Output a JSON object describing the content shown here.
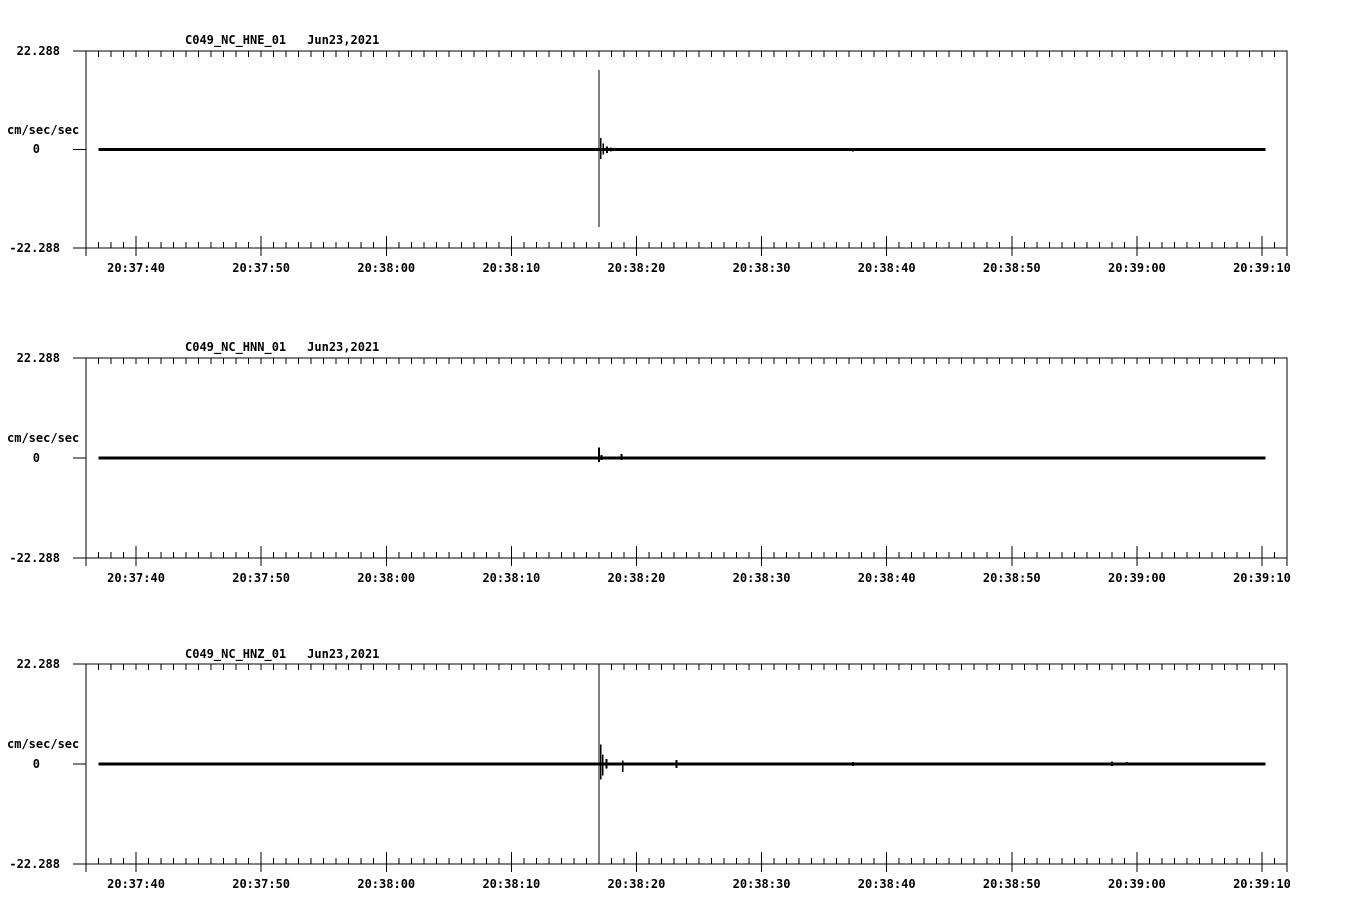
{
  "page": {
    "background": "#ffffff",
    "ink": "#000000"
  },
  "chart_data": {
    "type": "line",
    "description": "Three-component strong-motion seismogram panels, flat baseline at 0 with impulsive spikes",
    "panels": [
      {
        "id": "HNE",
        "title_station": "C049_NC_HNE_01",
        "title_date": "Jun23,2021",
        "y_axis": {
          "unit": "cm/sec/sec",
          "max": 22.288,
          "min": -22.288,
          "baseline": 0,
          "max_label": "22.288",
          "zero_label": "0",
          "min_label": "-22.288"
        },
        "x_axis": {
          "start": "20:37:36",
          "end": "20:39:12",
          "minor_tick_interval_s": 1,
          "major_tick_interval_s": 10,
          "tick_labels": [
            "20:37:40",
            "20:37:50",
            "20:38:00",
            "20:38:10",
            "20:38:20",
            "20:38:30",
            "20:38:40",
            "20:38:50",
            "20:39:00",
            "20:39:10"
          ]
        },
        "trace": {
          "baseline_value": 0,
          "start_s": 1.0,
          "end_s": 94.3,
          "events": [
            {
              "t_s": 41.0,
              "time": "20:38:17",
              "up": 18.0,
              "down": 17.5
            },
            {
              "t_s": 41.15,
              "time": "20:38:17",
              "up": 2.6,
              "down": 2.2
            },
            {
              "t_s": 41.35,
              "time": "20:38:17",
              "up": 1.4,
              "down": 1.1
            },
            {
              "t_s": 41.65,
              "time": "20:38:18",
              "up": 0.7,
              "down": 0.8
            },
            {
              "t_s": 41.95,
              "time": "20:38:18",
              "up": 0.4,
              "down": 0.4
            },
            {
              "t_s": 61.3,
              "time": "20:38:37",
              "up": 0.3,
              "down": 0.4
            },
            {
              "t_s": 69.8,
              "time": "20:38:46",
              "up": 0.35,
              "down": 0.2
            }
          ]
        }
      },
      {
        "id": "HNN",
        "title_station": "C049_NC_HNN_01",
        "title_date": "Jun23,2021",
        "y_axis": {
          "unit": "cm/sec/sec",
          "max": 22.288,
          "min": -22.288,
          "baseline": 0,
          "max_label": "22.288",
          "zero_label": "0",
          "min_label": "-22.288"
        },
        "x_axis": {
          "start": "20:37:36",
          "end": "20:39:12",
          "minor_tick_interval_s": 1,
          "major_tick_interval_s": 10,
          "tick_labels": [
            "20:37:40",
            "20:37:50",
            "20:38:00",
            "20:38:10",
            "20:38:20",
            "20:38:30",
            "20:38:40",
            "20:38:50",
            "20:39:00",
            "20:39:10"
          ]
        },
        "trace": {
          "baseline_value": 0,
          "start_s": 1.0,
          "end_s": 94.3,
          "events": [
            {
              "t_s": 41.0,
              "time": "20:38:17",
              "up": 2.3,
              "down": 0.9
            },
            {
              "t_s": 41.2,
              "time": "20:38:17",
              "up": 0.7,
              "down": 0.5
            },
            {
              "t_s": 42.8,
              "time": "20:38:19",
              "up": 0.9,
              "down": 0.4
            },
            {
              "t_s": 49.3,
              "time": "20:38:25",
              "up": 0.25,
              "down": 0.25
            },
            {
              "t_s": 70.3,
              "time": "20:38:46",
              "up": 0.3,
              "down": 0.3
            }
          ]
        }
      },
      {
        "id": "HNZ",
        "title_station": "C049_NC_HNZ_01",
        "title_date": "Jun23,2021",
        "y_axis": {
          "unit": "cm/sec/sec",
          "max": 22.288,
          "min": -22.288,
          "baseline": 0,
          "max_label": "22.288",
          "zero_label": "0",
          "min_label": "-22.288"
        },
        "x_axis": {
          "start": "20:37:36",
          "end": "20:39:12",
          "minor_tick_interval_s": 1,
          "major_tick_interval_s": 10,
          "tick_labels": [
            "20:37:40",
            "20:37:50",
            "20:38:00",
            "20:38:10",
            "20:38:20",
            "20:38:30",
            "20:38:40",
            "20:38:50",
            "20:39:00",
            "20:39:10"
          ]
        },
        "trace": {
          "baseline_value": 0,
          "start_s": 1.0,
          "end_s": 94.3,
          "events": [
            {
              "t_s": 3.2,
              "time": "20:37:39",
              "up": 0.35,
              "down": 0.2
            },
            {
              "t_s": 15.7,
              "time": "20:37:52",
              "up": 0.3,
              "down": 0.2
            },
            {
              "t_s": 41.0,
              "time": "20:38:17",
              "up": 21.5,
              "down": 22.1
            },
            {
              "t_s": 41.15,
              "time": "20:38:17",
              "up": 4.3,
              "down": 3.4
            },
            {
              "t_s": 41.3,
              "time": "20:38:17",
              "up": 2.1,
              "down": 2.6
            },
            {
              "t_s": 41.6,
              "time": "20:38:18",
              "up": 1.1,
              "down": 1.0
            },
            {
              "t_s": 42.9,
              "time": "20:38:19",
              "up": 0.8,
              "down": 1.8
            },
            {
              "t_s": 47.2,
              "time": "20:38:23",
              "up": 0.9,
              "down": 0.9
            },
            {
              "t_s": 49.8,
              "time": "20:38:26",
              "up": 0.3,
              "down": 0.3
            },
            {
              "t_s": 61.3,
              "time": "20:38:37",
              "up": 0.5,
              "down": 0.5
            },
            {
              "t_s": 82.0,
              "time": "20:38:58",
              "up": 0.6,
              "down": 0.4
            },
            {
              "t_s": 83.2,
              "time": "20:38:59",
              "up": 0.45,
              "down": 0.3
            },
            {
              "t_s": 84.6,
              "time": "20:39:01",
              "up": 0.35,
              "down": 0.35
            },
            {
              "t_s": 86.3,
              "time": "20:39:02",
              "up": 0.3,
              "down": 0.2
            },
            {
              "t_s": 87.1,
              "time": "20:39:03",
              "up": 0.25,
              "down": 0.2
            }
          ]
        }
      }
    ]
  }
}
